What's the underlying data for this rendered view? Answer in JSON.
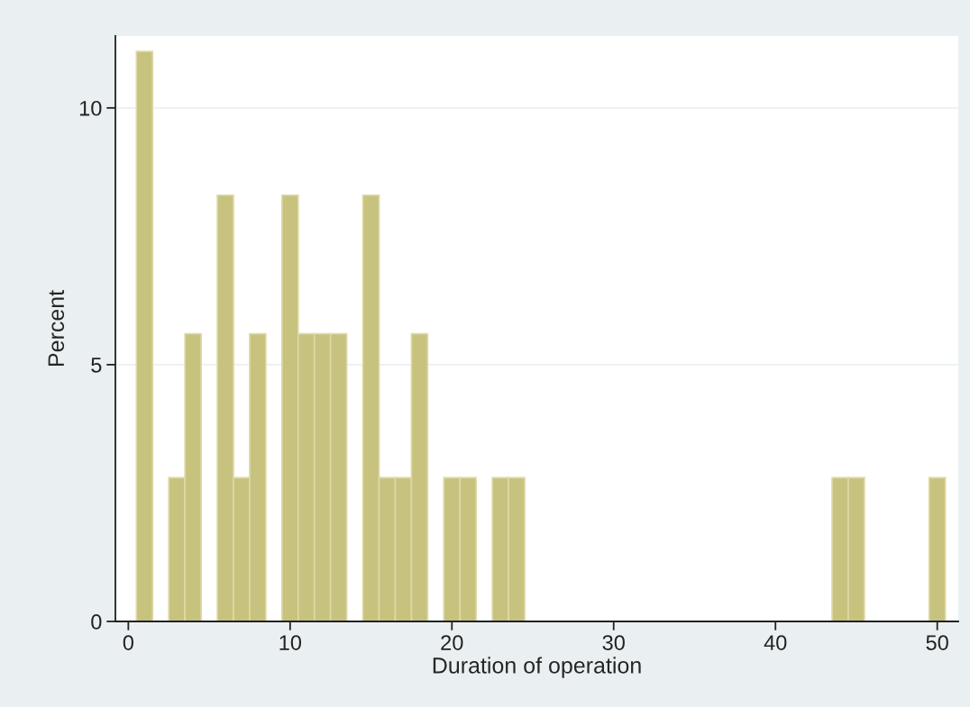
{
  "chart_data": {
    "type": "histogram",
    "xlabel": "Duration of operation",
    "ylabel": "Percent",
    "bins": [
      0.5,
      1.5,
      2.5,
      3.5,
      4.5,
      5.5,
      6.5,
      7.5,
      8.5,
      9.5,
      10.5,
      11.5,
      12.5,
      13.5,
      14.5,
      15.5,
      16.5,
      17.5,
      18.5,
      19.5,
      20.5,
      21.5,
      22.5,
      23.5,
      24.5,
      25.5,
      26.5,
      27.5,
      28.5,
      29.5,
      30.5,
      31.5,
      32.5,
      33.5,
      34.5,
      35.5,
      36.5,
      37.5,
      38.5,
      39.5,
      40.5,
      41.5,
      42.5,
      43.5,
      44.5,
      45.5,
      46.5,
      47.5,
      48.5,
      49.5,
      50.5
    ],
    "values": [
      11.1,
      0,
      2.8,
      5.6,
      0,
      8.3,
      2.8,
      5.6,
      0,
      8.3,
      5.6,
      5.6,
      5.6,
      0,
      8.3,
      2.8,
      2.8,
      5.6,
      0,
      2.8,
      2.8,
      0,
      2.8,
      2.8,
      0,
      0,
      0,
      0,
      0,
      0,
      0,
      0,
      0,
      0,
      0,
      0,
      0,
      0,
      0,
      0,
      0,
      0,
      0,
      2.8,
      2.8,
      0,
      0,
      0,
      0,
      2.8
    ],
    "color": "#c8c27f",
    "xlim": [
      -0.8,
      51.3
    ],
    "xticks": [
      0,
      10,
      20,
      30,
      40,
      50
    ],
    "ylim": [
      0,
      11.4
    ],
    "yticks": [
      0,
      5,
      10
    ],
    "grid": "y"
  }
}
